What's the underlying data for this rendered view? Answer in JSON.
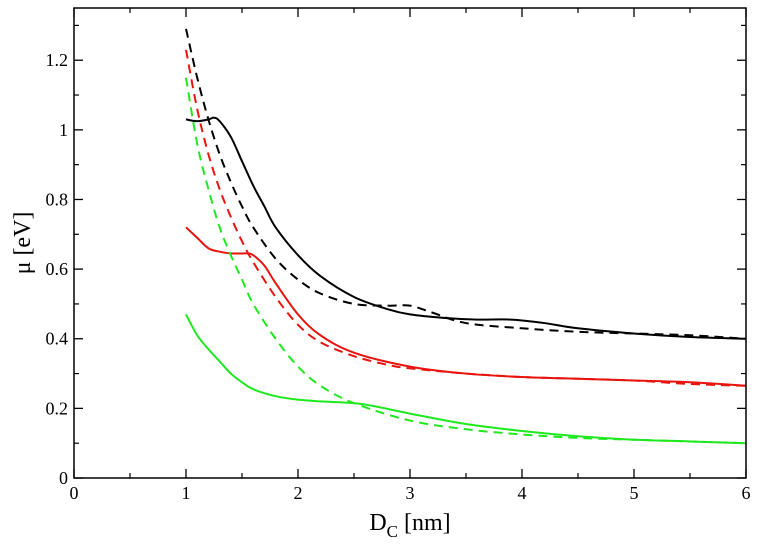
{
  "chart_data": {
    "type": "line",
    "title": "",
    "xlabel": {
      "main": "D",
      "sub": "C",
      "unit": " [nm]"
    },
    "ylabel": "μ [eV]",
    "xlim": [
      0,
      6
    ],
    "ylim": [
      0,
      1.35
    ],
    "xticks": [
      0,
      1,
      2,
      3,
      4,
      5,
      6
    ],
    "xtick_labels": [
      "0",
      "1",
      "2",
      "3",
      "4",
      "5",
      "6"
    ],
    "yticks": [
      0,
      0.2,
      0.4,
      0.6,
      0.8,
      1.0,
      1.2
    ],
    "ytick_labels": [
      "0",
      "0.2",
      "0.4",
      "0.6",
      "0.8",
      "1",
      "1.2"
    ],
    "grid": false,
    "series": [
      {
        "name": "black-solid",
        "color": "#000000",
        "style": "solid",
        "x": [
          1.0,
          1.1,
          1.2,
          1.25,
          1.3,
          1.4,
          1.5,
          1.6,
          1.7,
          1.8,
          2.0,
          2.2,
          2.5,
          2.8,
          3.0,
          3.3,
          3.6,
          3.9,
          4.2,
          4.5,
          5.0,
          5.5,
          6.0
        ],
        "y": [
          1.03,
          1.025,
          1.03,
          1.035,
          1.025,
          0.98,
          0.91,
          0.84,
          0.78,
          0.72,
          0.64,
          0.58,
          0.52,
          0.485,
          0.47,
          0.46,
          0.455,
          0.455,
          0.445,
          0.43,
          0.415,
          0.405,
          0.4
        ]
      },
      {
        "name": "black-dashed",
        "color": "#000000",
        "style": "dashed",
        "x": [
          1.0,
          1.1,
          1.2,
          1.3,
          1.4,
          1.5,
          1.6,
          1.8,
          2.0,
          2.2,
          2.5,
          2.8,
          3.0,
          3.2,
          3.5,
          4.0,
          4.5,
          5.0,
          5.5,
          6.0
        ],
        "y": [
          1.29,
          1.15,
          1.03,
          0.93,
          0.85,
          0.78,
          0.72,
          0.63,
          0.57,
          0.53,
          0.5,
          0.495,
          0.495,
          0.475,
          0.445,
          0.43,
          0.42,
          0.415,
          0.41,
          0.4
        ]
      },
      {
        "name": "red-solid",
        "color": "#e8140e",
        "style": "solid",
        "x": [
          1.0,
          1.1,
          1.2,
          1.3,
          1.4,
          1.5,
          1.55,
          1.6,
          1.7,
          1.8,
          2.0,
          2.2,
          2.5,
          3.0,
          3.5,
          4.0,
          4.5,
          5.0,
          5.5,
          6.0
        ],
        "y": [
          0.72,
          0.69,
          0.66,
          0.65,
          0.645,
          0.645,
          0.645,
          0.64,
          0.61,
          0.56,
          0.47,
          0.41,
          0.36,
          0.32,
          0.3,
          0.29,
          0.285,
          0.28,
          0.275,
          0.265
        ]
      },
      {
        "name": "red-dashed",
        "color": "#e8140e",
        "style": "dashed",
        "x": [
          1.0,
          1.1,
          1.2,
          1.3,
          1.4,
          1.5,
          1.6,
          1.8,
          2.0,
          2.2,
          2.5,
          2.8,
          3.0,
          3.5,
          4.0,
          4.5,
          5.0,
          5.5,
          6.0
        ],
        "y": [
          1.23,
          1.06,
          0.93,
          0.83,
          0.75,
          0.68,
          0.62,
          0.52,
          0.44,
          0.39,
          0.35,
          0.325,
          0.315,
          0.3,
          0.29,
          0.285,
          0.28,
          0.27,
          0.265
        ]
      },
      {
        "name": "green-solid",
        "color": "#1fe81f",
        "style": "solid",
        "x": [
          1.0,
          1.1,
          1.2,
          1.3,
          1.4,
          1.5,
          1.6,
          1.8,
          2.0,
          2.2,
          2.5,
          2.7,
          3.0,
          3.5,
          4.0,
          4.5,
          5.0,
          5.5,
          6.0
        ],
        "y": [
          0.47,
          0.41,
          0.37,
          0.335,
          0.3,
          0.275,
          0.255,
          0.235,
          0.225,
          0.22,
          0.215,
          0.205,
          0.185,
          0.155,
          0.135,
          0.12,
          0.11,
          0.105,
          0.1
        ]
      },
      {
        "name": "green-dashed",
        "color": "#1fe81f",
        "style": "dashed",
        "x": [
          1.0,
          1.1,
          1.2,
          1.3,
          1.4,
          1.5,
          1.6,
          1.8,
          2.0,
          2.2,
          2.5,
          3.0,
          3.5,
          4.0,
          4.5,
          5.0,
          5.5,
          6.0
        ],
        "y": [
          1.15,
          0.96,
          0.83,
          0.72,
          0.64,
          0.57,
          0.5,
          0.4,
          0.32,
          0.265,
          0.215,
          0.165,
          0.14,
          0.125,
          0.115,
          0.11,
          0.105,
          0.1
        ]
      }
    ]
  }
}
